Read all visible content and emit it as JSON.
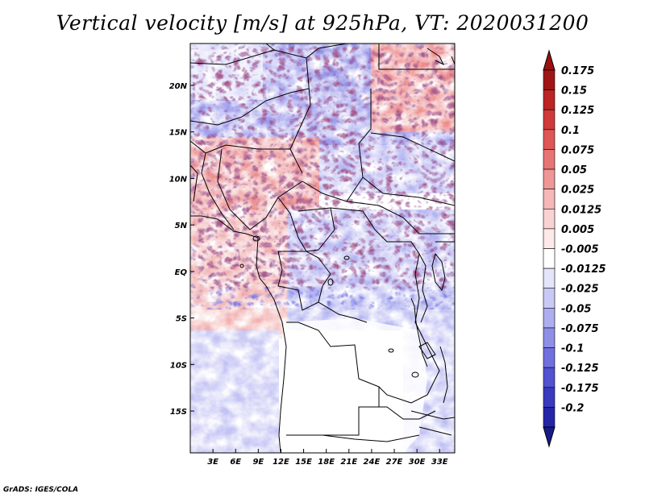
{
  "title": "Vertical velocity [m/s] at 925hPa, VT: 2020031200",
  "credit": "GrADS: IGES/COLA",
  "map": {
    "lat_labels": [
      "20N",
      "15N",
      "10N",
      "5N",
      "EQ",
      "5S",
      "10S",
      "15S"
    ],
    "lon_labels": [
      "3E",
      "6E",
      "9E",
      "12E",
      "15E",
      "18E",
      "21E",
      "24E",
      "27E",
      "30E",
      "33E"
    ],
    "lat_values": [
      20,
      15,
      10,
      5,
      0,
      -5,
      -10,
      -15
    ],
    "lon_values": [
      3,
      6,
      9,
      12,
      15,
      18,
      21,
      24,
      27,
      30,
      33
    ],
    "lon_range": [
      0,
      35
    ],
    "lat_range": [
      -19.5,
      24.5
    ]
  },
  "colorbar": {
    "labels": [
      "0.175",
      "0.15",
      "0.125",
      "0.1",
      "0.075",
      "0.05",
      "0.025",
      "0.0125",
      "0.005",
      "-0.005",
      "-0.0125",
      "-0.025",
      "-0.05",
      "-0.075",
      "-0.1",
      "-0.125",
      "-0.175",
      "-0.2"
    ],
    "colors": [
      "#a01515",
      "#bd2424",
      "#d03a3a",
      "#de5656",
      "#e87575",
      "#ef9696",
      "#f5b7b7",
      "#f9d3d3",
      "#fde9e9",
      "#ffffff",
      "#e4e4fb",
      "#c9c9f6",
      "#adadf0",
      "#8f8fe8",
      "#7070df",
      "#5252d2",
      "#3a3abf",
      "#2525a8",
      "#15158c"
    ],
    "top_color": "#9b1010",
    "bottom_color": "#1a1a8a"
  },
  "chart_data": {
    "type": "heatmap",
    "title": "Vertical velocity [m/s] at 925hPa, VT: 2020031200",
    "x_ticks": [
      "3E",
      "6E",
      "9E",
      "12E",
      "15E",
      "18E",
      "21E",
      "24E",
      "27E",
      "30E",
      "33E"
    ],
    "y_ticks": [
      "20N",
      "15N",
      "10N",
      "5N",
      "EQ",
      "5S",
      "10S",
      "15S"
    ],
    "contour_levels": [
      -0.2,
      -0.175,
      -0.125,
      -0.1,
      -0.075,
      -0.05,
      -0.025,
      -0.0125,
      -0.005,
      0.005,
      0.0125,
      0.025,
      0.05,
      0.075,
      0.1,
      0.125,
      0.15,
      0.175
    ],
    "units": "m/s"
  }
}
